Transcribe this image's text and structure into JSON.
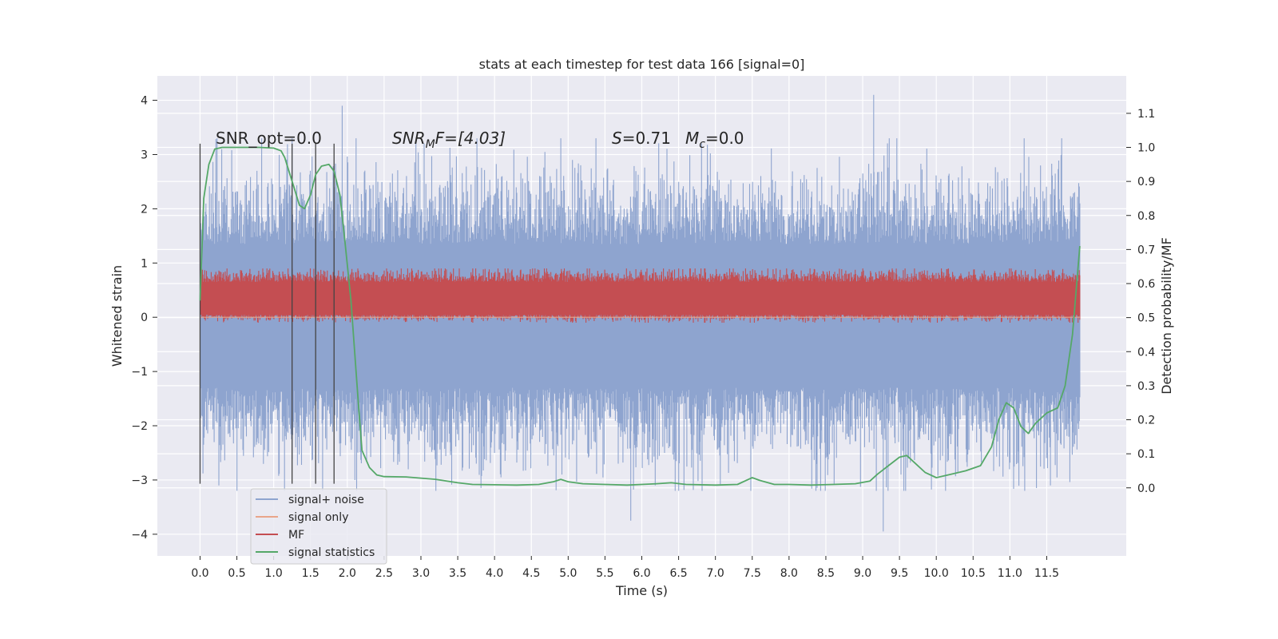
{
  "chart_data": {
    "type": "line",
    "title": "stats at each timestep for test data 166 [signal=0]",
    "xlabel": "Time (s)",
    "ylabel": "Whitened strain",
    "ylabel_right": "Detection probability/MF",
    "xlim": [
      -0.58,
      12.58
    ],
    "ylim": [
      -4.4,
      4.45
    ],
    "ylim_right": [
      -0.2,
      1.21
    ],
    "x_ticks": [
      0.0,
      0.5,
      1.0,
      1.5,
      2.0,
      2.5,
      3.0,
      3.5,
      4.0,
      4.5,
      5.0,
      5.5,
      6.0,
      6.5,
      7.0,
      7.5,
      8.0,
      8.5,
      9.0,
      9.5,
      10.0,
      10.5,
      11.0,
      11.5
    ],
    "x_tick_labels": [
      "0.0",
      "0.5",
      "1.0",
      "1.5",
      "2.0",
      "2.5",
      "3.0",
      "3.5",
      "4.0",
      "4.5",
      "5.0",
      "5.5",
      "6.0",
      "6.5",
      "7.0",
      "7.5",
      "8.0",
      "8.5",
      "9.0",
      "9.5",
      "10.0",
      "10.5",
      "11.0",
      "11.5"
    ],
    "y_ticks": [
      -4,
      -3,
      -2,
      -1,
      0,
      1,
      2,
      3,
      4
    ],
    "y_tick_labels": [
      "−4",
      "−3",
      "−2",
      "−1",
      "0",
      "1",
      "2",
      "3",
      "4"
    ],
    "y_right_ticks": [
      0.0,
      0.1,
      0.2,
      0.3,
      0.4,
      0.5,
      0.6,
      0.7,
      0.8,
      0.9,
      1.0,
      1.1
    ],
    "y_right_tick_labels": [
      "0.0",
      "0.1",
      "0.2",
      "0.3",
      "0.4",
      "0.5",
      "0.6",
      "0.7",
      "0.8",
      "0.9",
      "1.0",
      "1.1"
    ],
    "grid": true,
    "legend_position": "lower-left",
    "annotations": {
      "snr_opt": "SNR_opt=0.0",
      "snr_mf_italic": "SNR",
      "snr_mf_sub": "M",
      "snr_mf_tail": "F=[4.03]",
      "s_italic": "S",
      "s_value": "=0.71",
      "mc_italic": "M",
      "mc_sub": "c",
      "mc_value": "=0.0"
    },
    "vertical_markers_x": [
      0.0,
      1.25,
      1.57,
      1.82
    ],
    "vertical_markers_y": [
      -3.07,
      3.2
    ],
    "series": [
      {
        "name": "signal+ noise",
        "color": "#8ea4cf",
        "axis": "left",
        "x_range": [
          0.0,
          11.95
        ],
        "y_range": [
          -3.2,
          3.3
        ],
        "core_band": [
          -1.3,
          1.35
        ],
        "outlier_spikes": [
          [
            1.93,
            3.9
          ],
          [
            9.15,
            4.1
          ],
          [
            5.85,
            -3.75
          ],
          [
            9.28,
            -3.95
          ],
          [
            11.55,
            -3.1
          ]
        ]
      },
      {
        "name": "signal only",
        "color": "#e9a58a",
        "axis": "left",
        "x": [
          0.0,
          11.95
        ],
        "y": [
          0.0,
          0.0
        ]
      },
      {
        "name": "MF",
        "color": "#c44e52",
        "axis": "left",
        "x_range": [
          0.0,
          11.95
        ],
        "band": [
          0.05,
          0.65
        ],
        "peaks": [
          -0.1,
          0.9
        ]
      },
      {
        "name": "signal statistics",
        "color": "#55a868",
        "axis": "right",
        "x": [
          0.0,
          0.05,
          0.12,
          0.2,
          0.3,
          0.5,
          0.8,
          1.0,
          1.1,
          1.15,
          1.2,
          1.28,
          1.35,
          1.42,
          1.5,
          1.57,
          1.65,
          1.75,
          1.82,
          1.9,
          1.97,
          2.05,
          2.1,
          2.15,
          2.2,
          2.3,
          2.4,
          2.5,
          2.8,
          3.2,
          3.5,
          3.7,
          4.0,
          4.3,
          4.6,
          4.8,
          4.9,
          5.0,
          5.2,
          5.5,
          5.8,
          6.0,
          6.2,
          6.4,
          6.6,
          7.0,
          7.3,
          7.45,
          7.5,
          7.6,
          7.8,
          8.0,
          8.3,
          8.6,
          8.9,
          9.1,
          9.2,
          9.35,
          9.5,
          9.6,
          9.7,
          9.85,
          10.0,
          10.2,
          10.4,
          10.6,
          10.75,
          10.85,
          10.95,
          11.05,
          11.15,
          11.25,
          11.35,
          11.5,
          11.65,
          11.75,
          11.85,
          11.95
        ],
        "y": [
          0.55,
          0.85,
          0.95,
          0.995,
          1.0,
          1.0,
          1.0,
          0.998,
          0.99,
          0.97,
          0.935,
          0.88,
          0.83,
          0.82,
          0.86,
          0.92,
          0.945,
          0.95,
          0.93,
          0.86,
          0.72,
          0.55,
          0.4,
          0.25,
          0.11,
          0.06,
          0.038,
          0.033,
          0.032,
          0.025,
          0.015,
          0.01,
          0.009,
          0.008,
          0.01,
          0.018,
          0.025,
          0.018,
          0.012,
          0.01,
          0.008,
          0.01,
          0.012,
          0.015,
          0.01,
          0.008,
          0.01,
          0.025,
          0.03,
          0.022,
          0.01,
          0.01,
          0.008,
          0.01,
          0.012,
          0.02,
          0.04,
          0.065,
          0.09,
          0.095,
          0.075,
          0.045,
          0.03,
          0.04,
          0.05,
          0.065,
          0.12,
          0.2,
          0.25,
          0.235,
          0.18,
          0.16,
          0.19,
          0.22,
          0.235,
          0.3,
          0.45,
          0.71
        ]
      }
    ]
  }
}
